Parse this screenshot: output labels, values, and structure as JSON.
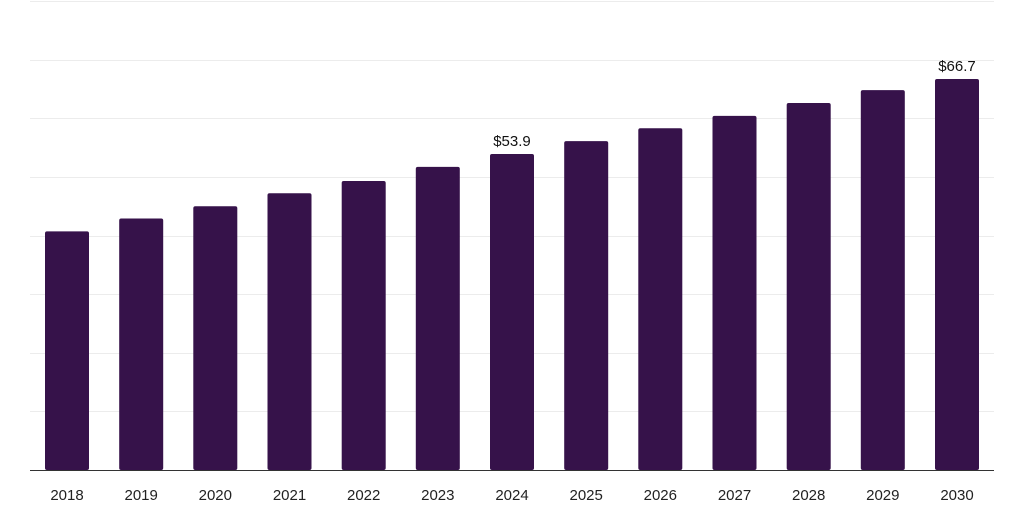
{
  "chart_data": {
    "type": "bar",
    "title": "",
    "xlabel": "",
    "ylabel": "",
    "categories": [
      "2018",
      "2019",
      "2020",
      "2021",
      "2022",
      "2023",
      "2024",
      "2025",
      "2026",
      "2027",
      "2028",
      "2029",
      "2030"
    ],
    "values": [
      40.7,
      42.9,
      45.0,
      47.2,
      49.3,
      51.7,
      53.9,
      56.1,
      58.3,
      60.4,
      62.6,
      64.8,
      66.7
    ],
    "data_labels": [
      {
        "index": 6,
        "text": "$53.9"
      },
      {
        "index": 12,
        "text": "$66.7"
      }
    ],
    "ylim": [
      0,
      80
    ],
    "gridlines": [
      0,
      10,
      20,
      30,
      40,
      50,
      60,
      70,
      80
    ],
    "grid": true,
    "legend": "none",
    "colors": {
      "bar": "#36124a",
      "grid": "#ececec",
      "axis": "#333333",
      "text": "#222222"
    }
  }
}
